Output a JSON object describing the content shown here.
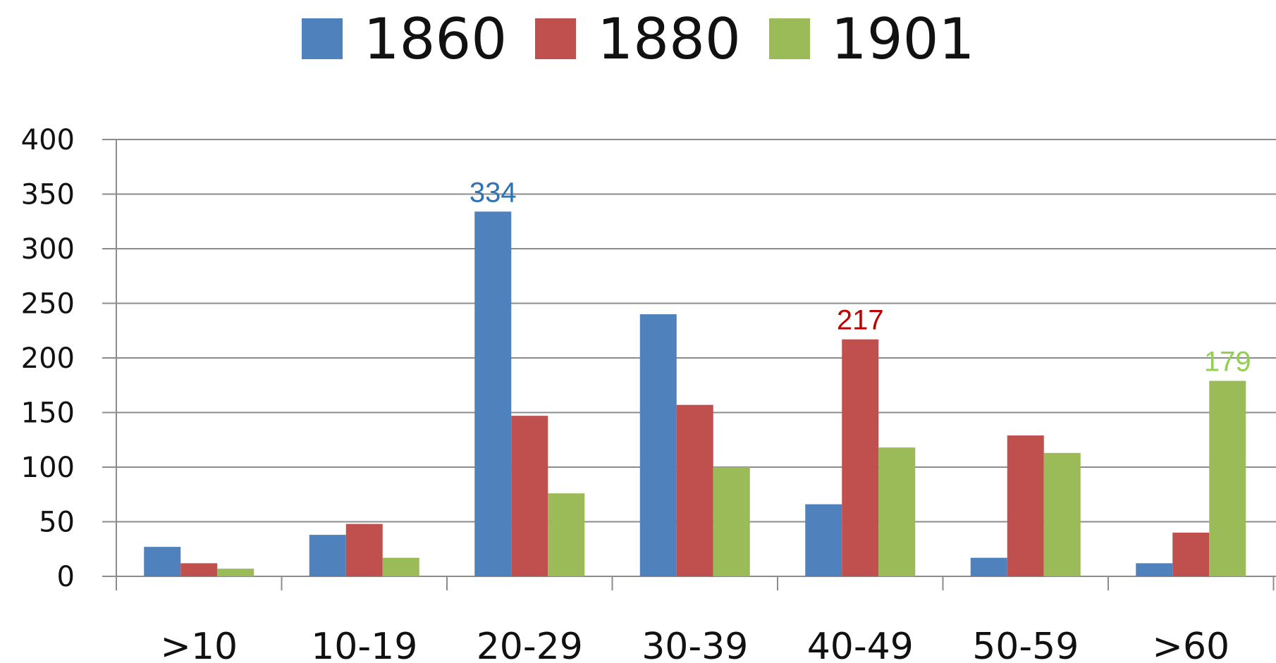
{
  "chart_data": {
    "type": "bar",
    "categories": [
      ">10",
      "10-19",
      "20-29",
      "30-39",
      "40-49",
      "50-59",
      ">60"
    ],
    "series": [
      {
        "name": "1860",
        "color": "#4f81bd",
        "values": [
          27,
          38,
          334,
          240,
          66,
          17,
          12
        ]
      },
      {
        "name": "1880",
        "color": "#c0504d",
        "values": [
          12,
          48,
          147,
          157,
          217,
          129,
          40
        ]
      },
      {
        "name": "1901",
        "color": "#9bbb59",
        "values": [
          7,
          17,
          76,
          100,
          118,
          113,
          179
        ]
      }
    ],
    "ylim": [
      0,
      400
    ],
    "yticks": [
      0,
      50,
      100,
      150,
      200,
      250,
      300,
      350,
      400
    ],
    "grid": true,
    "legend_position": "top",
    "data_labels": [
      {
        "series": 0,
        "category": 2,
        "text": "334",
        "color": "#2e74b5"
      },
      {
        "series": 1,
        "category": 4,
        "text": "217",
        "color": "#c00000"
      },
      {
        "series": 2,
        "category": 6,
        "text": "179",
        "color": "#92d050"
      }
    ],
    "title": "",
    "xlabel": "",
    "ylabel": ""
  }
}
